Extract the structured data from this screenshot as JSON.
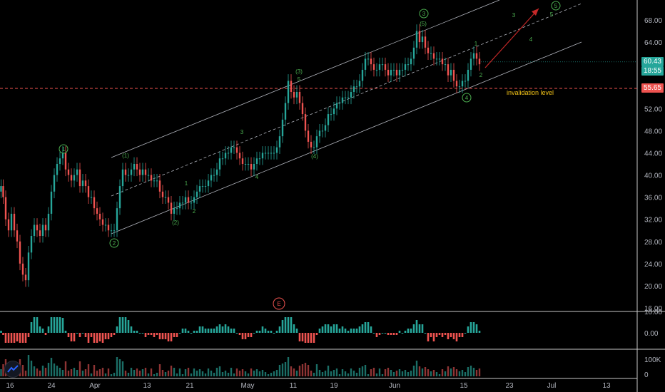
{
  "chart_data": {
    "type": "candlestick",
    "symbol_hint": "",
    "x_ticks": [
      "16",
      "24",
      "Apr",
      "13",
      "21",
      "May",
      "11",
      "19",
      "Jun",
      "15",
      "23",
      "Jul",
      "13"
    ],
    "price_axis": {
      "ticks": [
        "68.00",
        "64.00",
        "60.00",
        "56.00",
        "52.00",
        "48.00",
        "44.00",
        "40.00",
        "36.00",
        "32.00",
        "28.00",
        "24.00",
        "20.00",
        "16.00"
      ],
      "ylim": [
        16,
        70
      ]
    },
    "last_price": "60.43",
    "bar_timer": "18:55",
    "invalidation_price": "55.65",
    "invalidation_label": "invalidation level",
    "price_series": [
      [
        0,
        37
      ],
      [
        3,
        38
      ],
      [
        6,
        36
      ],
      [
        10,
        32
      ],
      [
        14,
        30
      ],
      [
        18,
        33
      ],
      [
        22,
        30
      ],
      [
        26,
        28
      ],
      [
        30,
        24
      ],
      [
        34,
        22
      ],
      [
        38,
        21
      ],
      [
        42,
        26
      ],
      [
        46,
        29
      ],
      [
        50,
        31
      ],
      [
        54,
        30
      ],
      [
        58,
        29
      ],
      [
        62,
        31
      ],
      [
        66,
        30
      ],
      [
        70,
        33
      ],
      [
        74,
        37
      ],
      [
        78,
        40
      ],
      [
        82,
        42
      ],
      [
        86,
        43
      ],
      [
        90,
        44
      ],
      [
        94,
        41
      ],
      [
        98,
        40
      ],
      [
        102,
        39
      ],
      [
        106,
        40
      ],
      [
        110,
        41
      ],
      [
        114,
        38
      ],
      [
        118,
        39
      ],
      [
        122,
        38
      ],
      [
        126,
        36
      ],
      [
        130,
        36
      ],
      [
        134,
        34
      ],
      [
        138,
        33
      ],
      [
        142,
        32
      ],
      [
        146,
        31
      ],
      [
        150,
        31
      ],
      [
        154,
        30
      ],
      [
        158,
        30
      ],
      [
        162,
        30
      ],
      [
        166,
        34
      ],
      [
        170,
        38
      ],
      [
        174,
        41
      ],
      [
        178,
        40
      ],
      [
        182,
        40
      ],
      [
        186,
        41
      ],
      [
        190,
        42
      ],
      [
        194,
        41
      ],
      [
        198,
        40
      ],
      [
        202,
        41
      ],
      [
        206,
        40
      ],
      [
        210,
        40
      ],
      [
        214,
        39
      ],
      [
        218,
        39
      ],
      [
        222,
        39
      ],
      [
        226,
        37
      ],
      [
        230,
        36
      ],
      [
        234,
        36
      ],
      [
        238,
        35
      ],
      [
        242,
        33
      ],
      [
        246,
        34
      ],
      [
        250,
        34
      ],
      [
        254,
        35
      ],
      [
        258,
        35
      ],
      [
        262,
        36
      ],
      [
        266,
        35
      ],
      [
        270,
        35
      ],
      [
        274,
        36
      ],
      [
        278,
        37
      ],
      [
        282,
        38
      ],
      [
        286,
        38
      ],
      [
        290,
        38
      ],
      [
        294,
        39
      ],
      [
        298,
        40
      ],
      [
        302,
        40
      ],
      [
        306,
        41
      ],
      [
        310,
        43
      ],
      [
        314,
        43
      ],
      [
        318,
        44
      ],
      [
        322,
        44
      ],
      [
        326,
        45
      ],
      [
        330,
        45
      ],
      [
        334,
        44
      ],
      [
        338,
        43
      ],
      [
        342,
        42
      ],
      [
        346,
        42
      ],
      [
        350,
        42
      ],
      [
        354,
        41
      ],
      [
        358,
        42
      ],
      [
        362,
        43
      ],
      [
        366,
        43
      ],
      [
        370,
        44
      ],
      [
        374,
        44
      ],
      [
        378,
        44
      ],
      [
        382,
        44
      ],
      [
        386,
        44
      ],
      [
        390,
        45
      ],
      [
        394,
        47
      ],
      [
        398,
        50
      ],
      [
        402,
        53
      ],
      [
        406,
        57
      ],
      [
        410,
        55
      ],
      [
        414,
        54
      ],
      [
        418,
        55
      ],
      [
        422,
        53
      ],
      [
        426,
        51
      ],
      [
        430,
        48
      ],
      [
        434,
        46
      ],
      [
        438,
        45
      ],
      [
        442,
        45
      ],
      [
        446,
        47
      ],
      [
        450,
        48
      ],
      [
        454,
        48
      ],
      [
        458,
        49
      ],
      [
        462,
        51
      ],
      [
        466,
        51
      ],
      [
        470,
        52
      ],
      [
        474,
        53
      ],
      [
        478,
        53
      ],
      [
        482,
        54
      ],
      [
        486,
        54
      ],
      [
        490,
        54
      ],
      [
        494,
        55
      ],
      [
        498,
        56
      ],
      [
        502,
        56
      ],
      [
        506,
        57
      ],
      [
        510,
        59
      ],
      [
        514,
        61
      ],
      [
        518,
        61
      ],
      [
        522,
        60
      ],
      [
        526,
        59
      ],
      [
        530,
        59
      ],
      [
        534,
        60
      ],
      [
        538,
        60
      ],
      [
        542,
        59
      ],
      [
        546,
        58
      ],
      [
        550,
        59
      ],
      [
        554,
        59
      ],
      [
        558,
        58
      ],
      [
        562,
        59
      ],
      [
        566,
        59
      ],
      [
        570,
        60
      ],
      [
        574,
        60
      ],
      [
        578,
        61
      ],
      [
        582,
        63
      ],
      [
        586,
        66
      ],
      [
        590,
        64
      ],
      [
        594,
        65
      ],
      [
        598,
        63
      ],
      [
        602,
        62
      ],
      [
        606,
        62
      ],
      [
        610,
        61
      ],
      [
        614,
        61
      ],
      [
        618,
        61
      ],
      [
        622,
        60
      ],
      [
        626,
        60
      ],
      [
        630,
        58
      ],
      [
        634,
        59
      ],
      [
        638,
        57
      ],
      [
        642,
        56
      ],
      [
        646,
        56
      ],
      [
        650,
        57
      ],
      [
        654,
        57
      ],
      [
        658,
        59
      ],
      [
        662,
        61
      ],
      [
        666,
        62
      ],
      [
        670,
        61
      ],
      [
        674,
        60
      ]
    ],
    "labels": {
      "w1_circle": "1",
      "w2_circle": "2",
      "w3_circle": "3",
      "w4_circle": "4",
      "w5_circle": "5",
      "sub_1": "(1)",
      "sub_2": "(2)",
      "sub_3": "(3)",
      "sub_4": "(4)",
      "sub_5": "(5)",
      "s1": "1",
      "s2": "2",
      "s3": "3",
      "s4": "4",
      "s5": "5",
      "proj3": "3",
      "proj4": "4",
      "proj5": "5",
      "e_marker": "E"
    },
    "momentum": {
      "ticks": [
        "10.00",
        "0.00"
      ]
    },
    "volume": {
      "ticks": [
        "100K",
        "0"
      ]
    }
  }
}
